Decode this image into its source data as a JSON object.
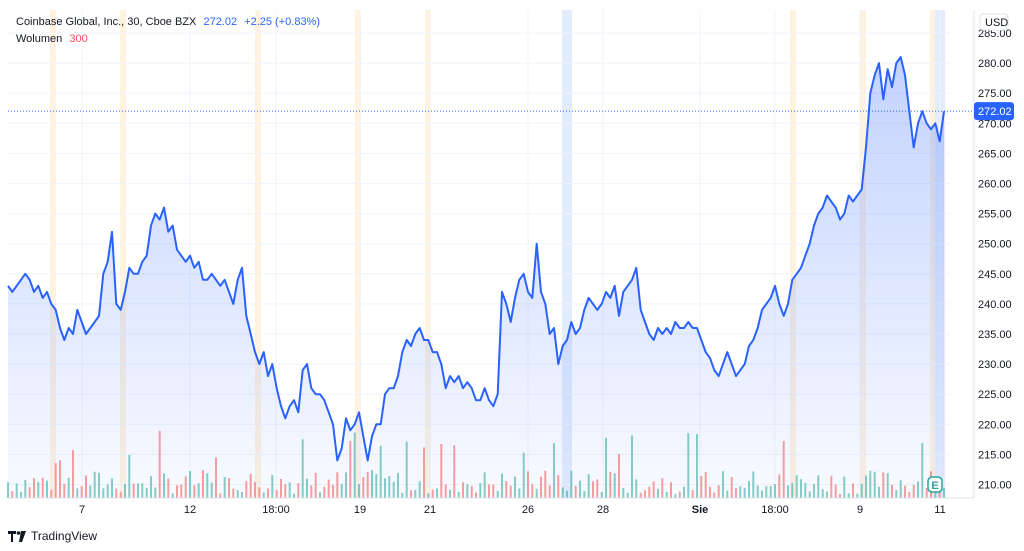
{
  "header": {
    "title": "Coinbase Global, Inc., 30, Cboe BZX",
    "last": "272.02",
    "change": "+2.25 (+0.83%)",
    "volume_label": "Wolumen",
    "volume_value": "300"
  },
  "currency": "USD",
  "brand": "TradingView",
  "colors": {
    "line": "#2962ff",
    "vol_up": "#26a69a",
    "vol_down": "#ef5350",
    "session_pre": "#fff3e0",
    "session_post": "#e3ecfd"
  },
  "chart_data": {
    "type": "area",
    "series": [
      {
        "values": [
          243,
          242,
          243,
          244,
          245,
          244,
          242,
          243,
          241,
          242,
          240,
          239,
          236,
          234,
          236,
          235,
          239,
          237,
          235,
          236,
          237,
          238,
          245,
          247,
          252,
          240,
          239,
          242,
          246,
          245,
          245,
          247,
          248,
          253,
          255,
          254,
          256,
          252,
          253,
          249,
          248,
          247,
          248,
          246,
          247,
          244,
          244,
          245,
          244,
          243,
          244,
          242,
          240,
          244,
          246,
          238,
          235,
          232,
          230,
          232,
          228,
          230,
          226,
          223,
          221,
          223,
          224,
          222,
          229,
          230,
          226,
          225,
          225,
          224,
          222,
          220,
          214,
          216,
          221,
          219,
          220,
          222,
          218,
          214,
          218,
          220,
          220,
          225,
          226,
          226,
          228,
          232,
          234,
          233,
          235,
          236,
          234,
          234,
          232,
          232,
          230,
          226,
          228,
          227,
          228,
          226,
          227,
          226,
          224,
          224,
          226,
          224,
          223,
          225,
          242,
          240,
          237,
          241,
          244,
          245,
          242,
          241,
          250,
          242,
          240,
          235,
          236,
          230,
          233,
          234,
          237,
          235,
          236,
          239,
          241,
          240,
          239,
          240,
          242,
          241,
          243,
          238,
          242,
          243,
          244,
          246,
          239,
          237,
          235,
          234,
          236,
          235,
          236,
          235,
          237,
          236,
          236,
          237,
          236,
          236,
          234,
          232,
          231,
          229,
          228,
          230,
          232,
          230,
          228,
          229,
          230,
          233,
          234,
          236,
          239,
          240,
          241,
          243,
          240,
          238,
          240,
          244,
          245,
          246,
          248,
          250,
          253,
          255,
          256,
          258,
          257,
          256,
          254,
          255,
          258,
          257,
          258,
          259,
          266,
          275,
          278,
          280,
          274,
          279,
          276,
          280,
          281,
          278,
          272,
          266,
          270,
          272,
          270,
          269,
          270,
          267,
          272
        ],
        "note_x": "30-minute bars, 7 Aug -> 11 Aug (session)"
      }
    ],
    "volume": {
      "label": "Wolumen",
      "last": 300
    },
    "x_ticks": [
      "7",
      "12",
      "18:00",
      "19",
      "21",
      "26",
      "28",
      "Sie",
      "18:00",
      "9",
      "11"
    ],
    "y_ticks": [
      285,
      280,
      275,
      270,
      265,
      260,
      255,
      250,
      245,
      240,
      235,
      230,
      225,
      220,
      215,
      210
    ],
    "ylim": [
      206,
      287
    ],
    "ylabel": "USD",
    "last_price": 272.02,
    "grid": true
  }
}
